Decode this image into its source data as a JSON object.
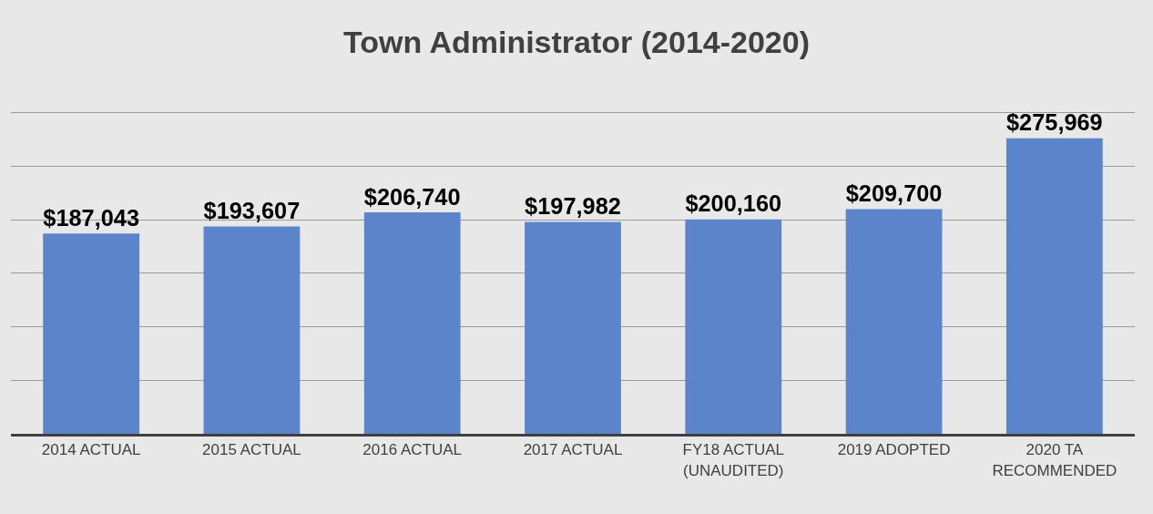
{
  "chart_data": {
    "type": "bar",
    "title": "Town Administrator (2014-2020)",
    "categories": [
      "2014 ACTUAL",
      "2015 ACTUAL",
      "2016 ACTUAL",
      "2017 ACTUAL",
      "FY18 ACTUAL (UNAUDITED)",
      "2019 ADOPTED",
      "2020 TA RECOMMENDED"
    ],
    "values": [
      187043,
      193607,
      206740,
      197982,
      200160,
      209700,
      275969
    ],
    "value_labels": [
      "$187,043",
      "$193,607",
      "$206,740",
      "$197,982",
      "$200,160",
      "$209,700",
      "$275,969"
    ],
    "color": "#5b84cb",
    "yticks": [
      {
        "value": 0,
        "label": null
      },
      {
        "value": 50000,
        "label": null
      },
      {
        "value": 100000,
        "label": null
      },
      {
        "value": 150000,
        "label": null
      },
      {
        "value": 200000,
        "label": null
      },
      {
        "value": 250000,
        "label": null
      },
      {
        "value": 300000,
        "label": null
      }
    ],
    "tick_labels": "x",
    "grid": "y"
  }
}
